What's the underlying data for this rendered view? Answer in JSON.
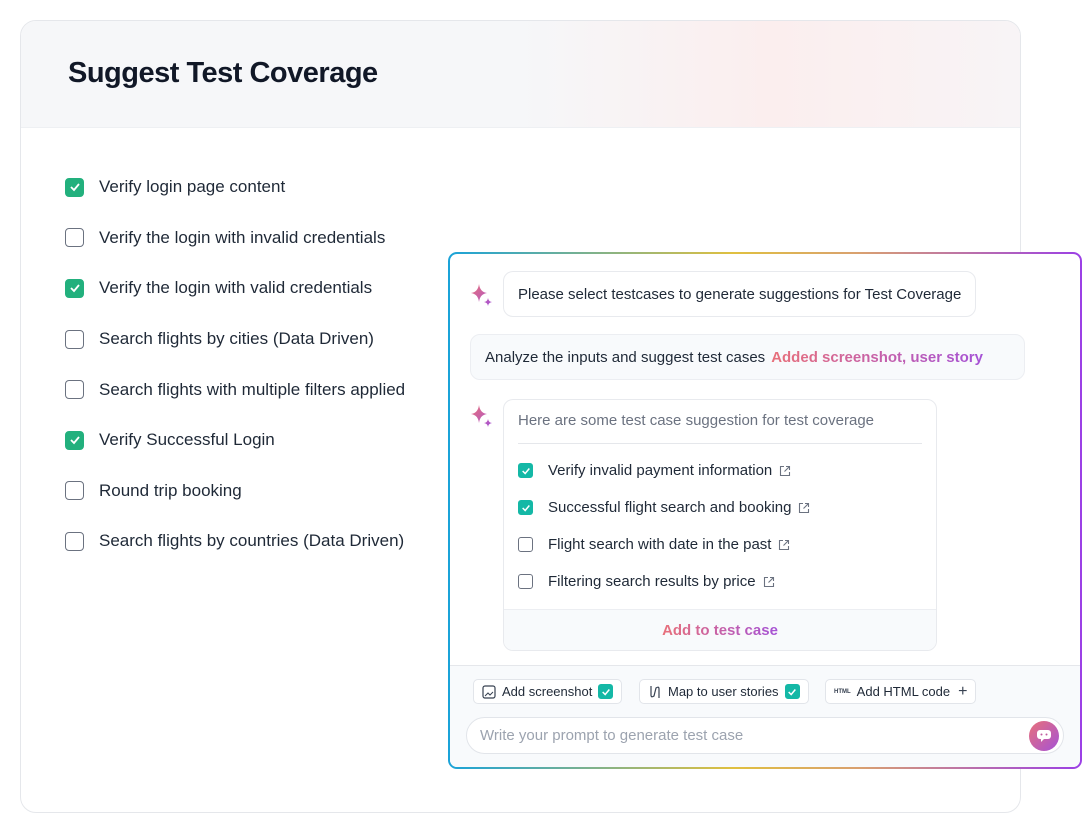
{
  "page": {
    "title": "Suggest Test Coverage"
  },
  "testcases": [
    {
      "label": "Verify login page content",
      "checked": true
    },
    {
      "label": "Verify the login with invalid credentials",
      "checked": false
    },
    {
      "label": "Verify the login with valid credentials",
      "checked": true
    },
    {
      "label": "Search flights by cities (Data Driven)",
      "checked": false
    },
    {
      "label": "Search flights with multiple filters applied",
      "checked": false
    },
    {
      "label": "Verify Successful Login",
      "checked": true
    },
    {
      "label": "Round trip booking",
      "checked": false
    },
    {
      "label": "Search flights by countries (Data Driven)",
      "checked": false
    }
  ],
  "chat": {
    "assistant_message": "Please select testcases to generate suggestions for Test Coverage",
    "user_message": "Analyze the inputs and suggest test cases",
    "user_attachments": "Added screenshot, user story",
    "suggestions_header": "Here are some test case suggestion for test coverage",
    "suggestions": [
      {
        "label": "Verify invalid payment information",
        "checked": true
      },
      {
        "label": "Successful flight search and booking",
        "checked": true
      },
      {
        "label": "Flight search with date in the past",
        "checked": false
      },
      {
        "label": "Filtering search results by price",
        "checked": false
      }
    ],
    "add_button": "Add to test case",
    "chips": {
      "screenshot": "Add screenshot",
      "user_stories": "Map to user stories",
      "html_icon": "HTML",
      "html": "Add HTML code"
    },
    "input_placeholder": "Write your prompt to generate test case"
  },
  "colors": {
    "check_green": "#22b07d",
    "check_teal": "#14b8a6",
    "gradient_start": "#e8707a",
    "gradient_end": "#a552d6"
  }
}
